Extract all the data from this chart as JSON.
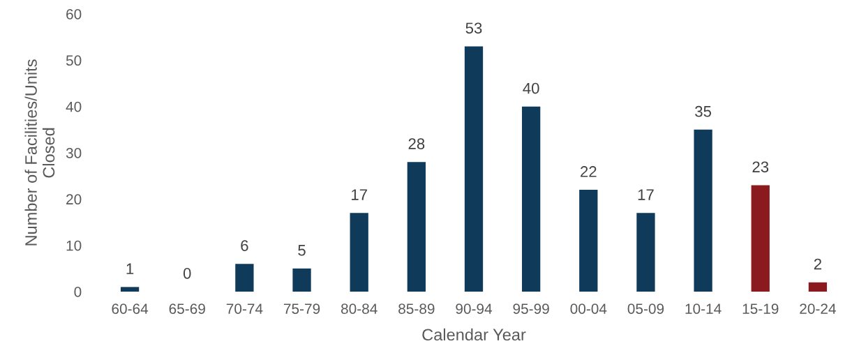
{
  "chart_data": {
    "type": "bar",
    "xlabel": "Calendar Year",
    "ylabel": "Number of Facilities/Units\nClosed",
    "categories": [
      "60-64",
      "65-69",
      "70-74",
      "75-79",
      "80-84",
      "85-89",
      "90-94",
      "95-99",
      "00-04",
      "05-09",
      "10-14",
      "15-19",
      "20-24"
    ],
    "values": [
      1,
      0,
      6,
      5,
      17,
      28,
      53,
      40,
      22,
      17,
      35,
      23,
      2
    ],
    "colors": [
      "#0f3a5a",
      "#0f3a5a",
      "#0f3a5a",
      "#0f3a5a",
      "#0f3a5a",
      "#0f3a5a",
      "#0f3a5a",
      "#0f3a5a",
      "#0f3a5a",
      "#0f3a5a",
      "#0f3a5a",
      "#8b1a1f",
      "#8b1a1f"
    ],
    "ylim": [
      0,
      60
    ],
    "yticks": [
      0,
      10,
      20,
      30,
      40,
      50,
      60
    ],
    "grid": false,
    "legend": false,
    "data_labels": true
  }
}
